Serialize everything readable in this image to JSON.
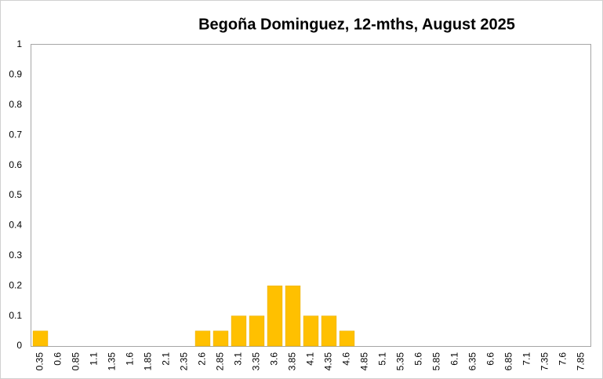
{
  "chart_data": {
    "type": "bar",
    "title": "Begoña Dominguez, 12-mths, August 2025",
    "categories": [
      "0.35",
      "0.6",
      "0.85",
      "1.1",
      "1.35",
      "1.6",
      "1.85",
      "2.1",
      "2.35",
      "2.6",
      "2.85",
      "3.1",
      "3.35",
      "3.6",
      "3.85",
      "4.1",
      "4.35",
      "4.6",
      "4.85",
      "5.1",
      "5.35",
      "5.6",
      "5.85",
      "6.1",
      "6.35",
      "6.6",
      "6.85",
      "7.1",
      "7.35",
      "7.6",
      "7.85"
    ],
    "values": [
      0.05,
      0,
      0,
      0,
      0,
      0,
      0,
      0,
      0,
      0.05,
      0.05,
      0.1,
      0.1,
      0.2,
      0.2,
      0.1,
      0.1,
      0.05,
      0,
      0,
      0,
      0,
      0,
      0,
      0,
      0,
      0,
      0,
      0,
      0,
      0
    ],
    "color": "#ffc000",
    "ylim": [
      0,
      1
    ],
    "yticks": [
      0,
      0.1,
      0.2,
      0.3,
      0.4,
      0.5,
      0.6,
      0.7,
      0.8,
      0.9,
      1
    ],
    "grid": false
  }
}
